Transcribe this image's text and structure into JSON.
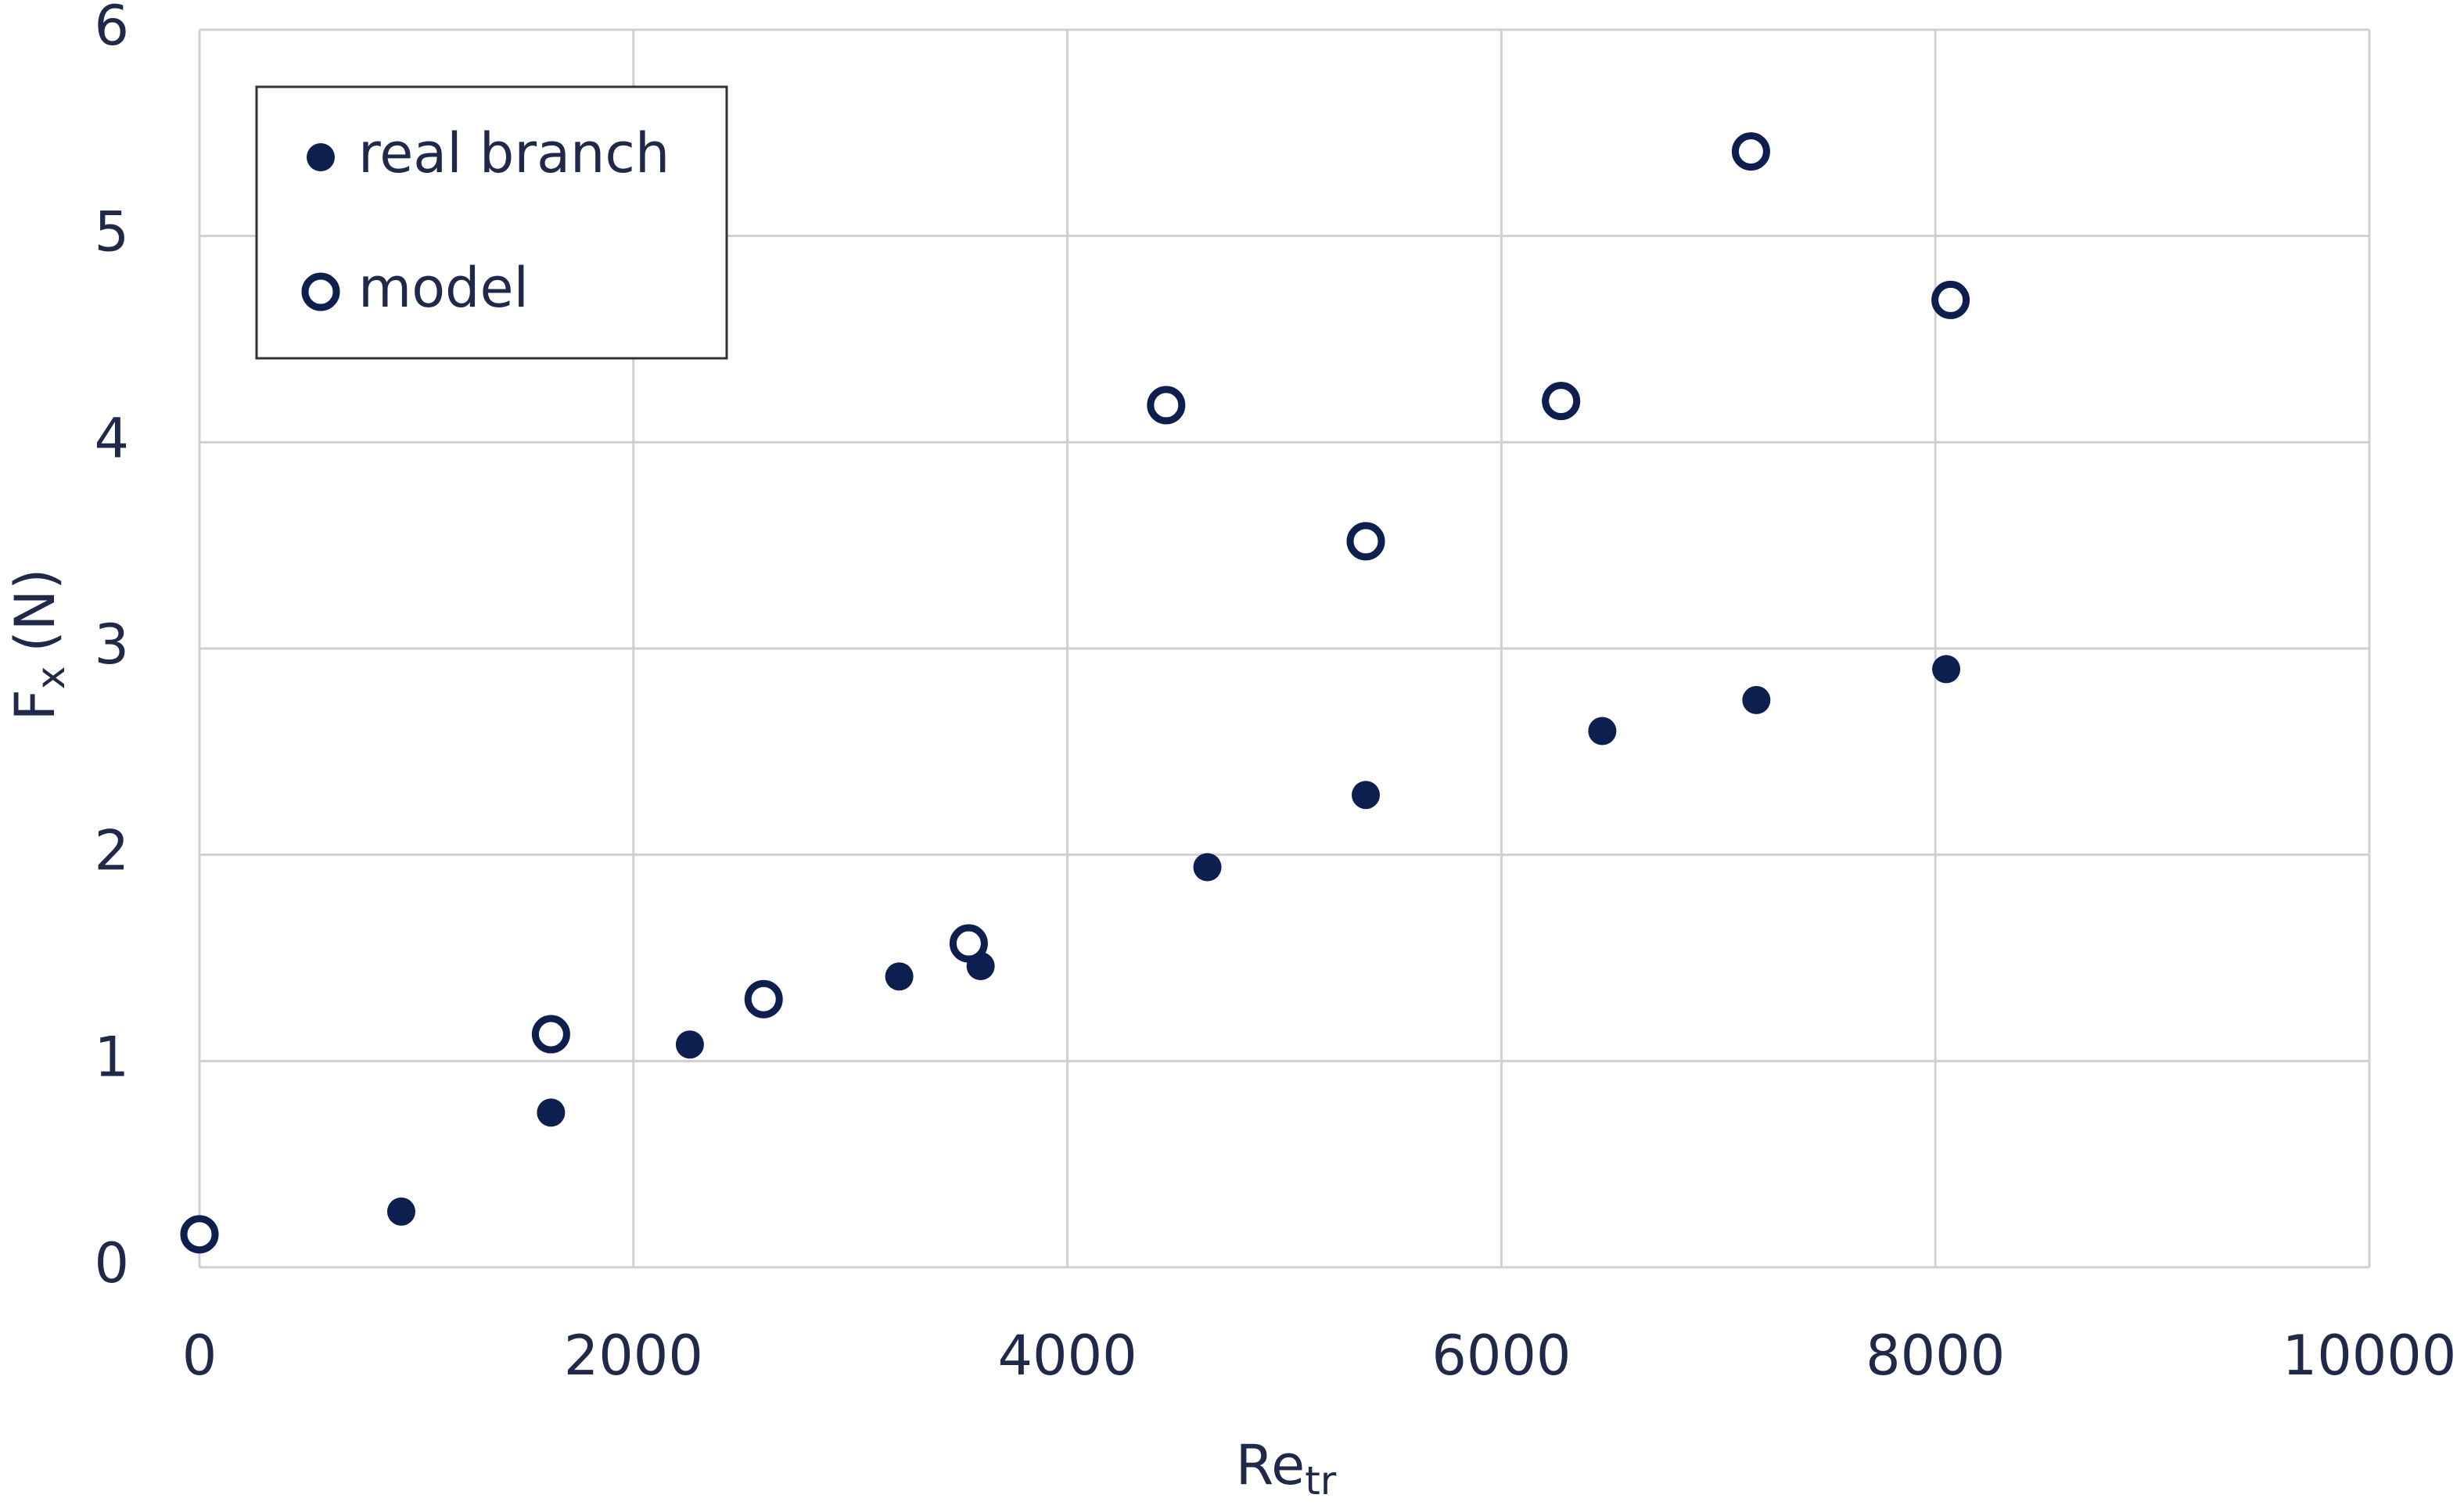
{
  "chart_data": {
    "type": "scatter",
    "xlabel": {
      "main": "Re",
      "sub": "tr"
    },
    "ylabel": {
      "main": "F",
      "sub": "x",
      "unit": "(N)"
    },
    "xlim": [
      0,
      10000
    ],
    "xticks": [
      0,
      2000,
      4000,
      6000,
      8000,
      10000
    ],
    "ylim": [
      0,
      6
    ],
    "yticks": [
      0,
      1,
      2,
      3,
      4,
      5,
      6
    ],
    "grid": true,
    "legend": "upper left",
    "series": [
      {
        "name": "real branch",
        "color": "#0d1f4f",
        "marker": "filled",
        "x": [
          930,
          1620,
          2260,
          3225,
          3600,
          4645,
          5375,
          6465,
          7175,
          8050
        ],
        "values": [
          0.27,
          0.75,
          1.08,
          1.41,
          1.46,
          1.94,
          2.29,
          2.6,
          2.75,
          2.9
        ]
      },
      {
        "name": "model",
        "color": "#0d1f4f",
        "marker": "open",
        "x": [
          0,
          1620,
          2600,
          3545,
          4455,
          5375,
          6275,
          7150,
          8070
        ],
        "values": [
          0.16,
          1.13,
          1.3,
          1.57,
          4.18,
          3.52,
          4.2,
          5.41,
          4.69
        ]
      }
    ]
  }
}
